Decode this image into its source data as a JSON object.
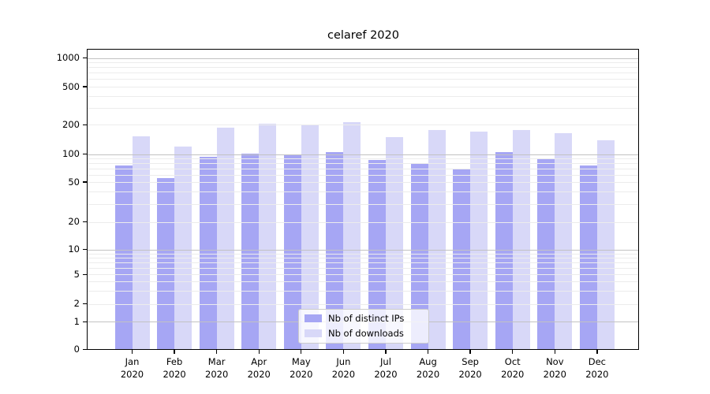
{
  "title": "celaref 2020",
  "chart_data": {
    "type": "bar",
    "title": "celaref 2020",
    "categories": [
      "Jan 2020",
      "Feb 2020",
      "Mar 2020",
      "Apr 2020",
      "May 2020",
      "Jun 2020",
      "Jul 2020",
      "Aug 2020",
      "Sep 2020",
      "Oct 2020",
      "Nov 2020",
      "Dec 2020"
    ],
    "series": [
      {
        "name": "Nb of distinct IPs",
        "color": "#a6a6f4",
        "values": [
          75,
          55,
          94,
          102,
          100,
          105,
          86,
          80,
          69,
          105,
          89,
          76
        ]
      },
      {
        "name": "Nb of downloads",
        "color": "#d8d8f8",
        "values": [
          152,
          119,
          188,
          204,
          197,
          213,
          150,
          178,
          170,
          177,
          164,
          140
        ]
      }
    ],
    "y_ticks": [
      0,
      1,
      2,
      5,
      10,
      20,
      50,
      100,
      200,
      500,
      1000
    ],
    "y_scale": "log-like with linear segment below 1",
    "ylim": [
      0,
      1100
    ],
    "grid": true,
    "legend_position": "lower center"
  }
}
